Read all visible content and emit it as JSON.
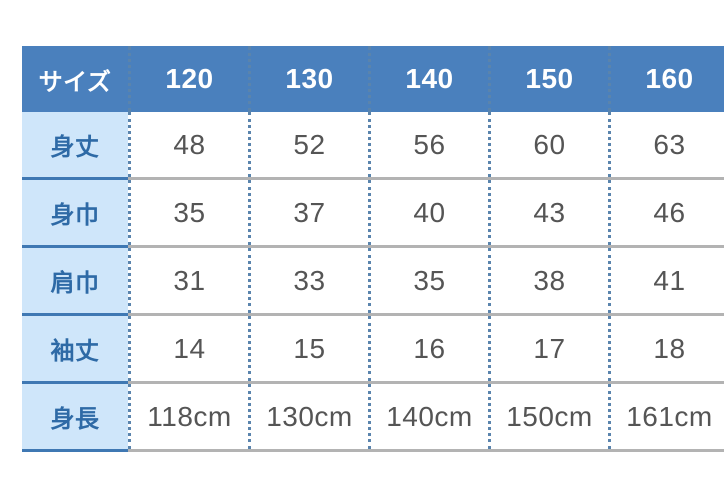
{
  "table": {
    "header": [
      "サイズ",
      "120",
      "130",
      "140",
      "150",
      "160"
    ],
    "rows": [
      {
        "label": "身丈",
        "values": [
          "48",
          "52",
          "56",
          "60",
          "63"
        ]
      },
      {
        "label": "身巾",
        "values": [
          "35",
          "37",
          "40",
          "43",
          "46"
        ]
      },
      {
        "label": "肩巾",
        "values": [
          "31",
          "33",
          "35",
          "38",
          "41"
        ]
      },
      {
        "label": "袖丈",
        "values": [
          "14",
          "15",
          "16",
          "17",
          "18"
        ]
      },
      {
        "label": "身長",
        "values": [
          "118cm",
          "130cm",
          "140cm",
          "150cm",
          "161cm"
        ]
      }
    ]
  },
  "colors": {
    "header_bg": "#4a80bd",
    "label_bg": "#cfe6fa",
    "label_text": "#2e6aa6",
    "row_border": "#b3b3b3"
  }
}
